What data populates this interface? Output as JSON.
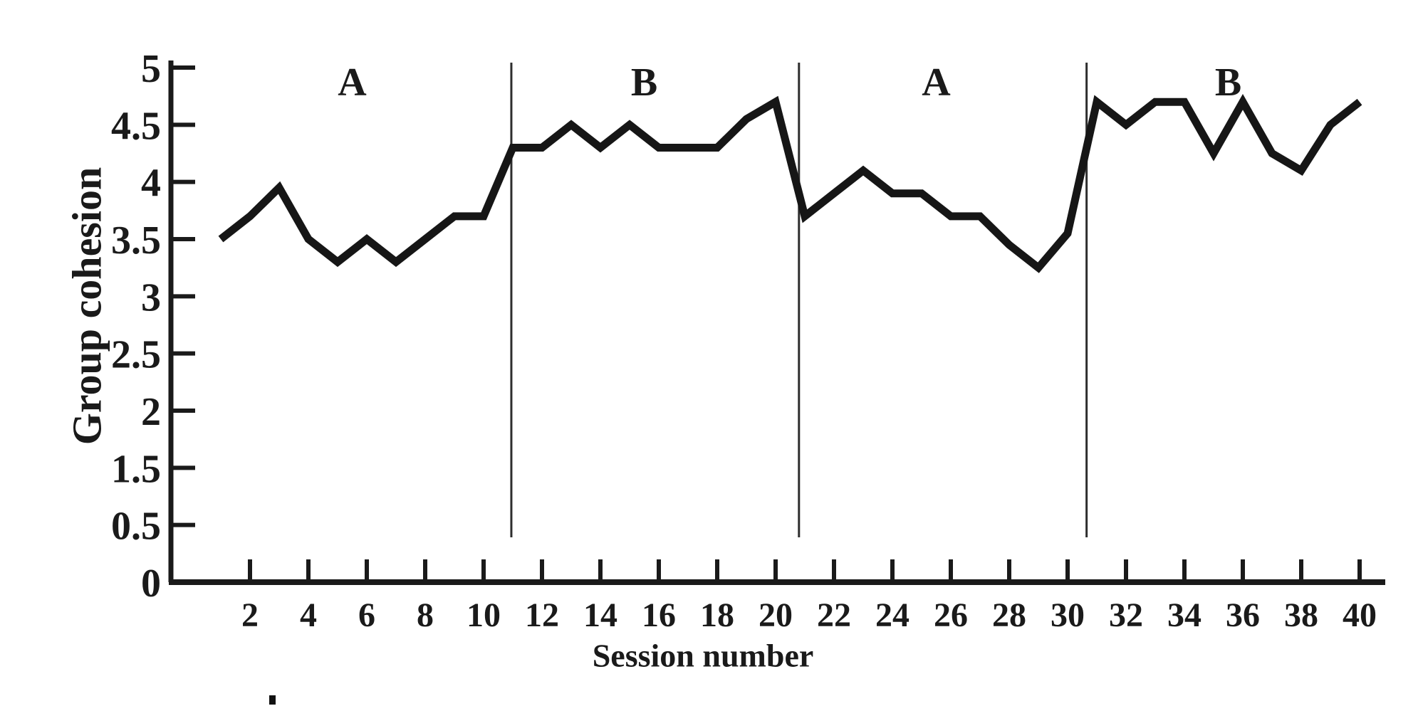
{
  "figure": {
    "background": "#ffffff",
    "ink_color": "#1a1a1a",
    "line_color": "#161616",
    "divider_color": "#2e2e2e"
  },
  "chart_data": {
    "type": "line",
    "title": "",
    "xlabel": "Session number",
    "ylabel": "Group cohesion",
    "xlim": [
      1,
      40
    ],
    "ylim": [
      0,
      5
    ],
    "grid": false,
    "legend": "none",
    "x": [
      1,
      2,
      3,
      4,
      5,
      6,
      7,
      8,
      9,
      10,
      11,
      12,
      13,
      14,
      15,
      16,
      17,
      18,
      19,
      20,
      21,
      22,
      23,
      24,
      25,
      26,
      27,
      28,
      29,
      30,
      31,
      32,
      33,
      34,
      35,
      36,
      37,
      38,
      39,
      40
    ],
    "values": [
      3.5,
      3.7,
      3.95,
      3.5,
      3.3,
      3.5,
      3.3,
      3.5,
      3.7,
      3.7,
      4.3,
      4.3,
      4.5,
      4.3,
      4.5,
      4.3,
      4.3,
      4.3,
      4.55,
      4.7,
      3.7,
      3.9,
      4.1,
      3.9,
      3.9,
      3.7,
      3.7,
      3.45,
      3.25,
      3.55,
      4.7,
      4.5,
      4.7,
      4.7,
      4.25,
      4.7,
      4.25,
      4.1,
      4.5,
      4.7
    ],
    "phases": [
      {
        "label": "A",
        "sessions": [
          1,
          10
        ]
      },
      {
        "label": "B",
        "sessions": [
          11,
          20
        ]
      },
      {
        "label": "A",
        "sessions": [
          21,
          30
        ]
      },
      {
        "label": "B",
        "sessions": [
          31,
          40
        ]
      }
    ],
    "phase_dividers_at_sessions": [
      10.95,
      20.8,
      30.65
    ],
    "x_ticks_shown": [
      2,
      4,
      6,
      8,
      10,
      12,
      14,
      16,
      18,
      20,
      22,
      24,
      26,
      28,
      30,
      32,
      34,
      36,
      38,
      40
    ],
    "y_ticks_shown": [
      "5",
      "4.5",
      "4",
      "3.5",
      "3",
      "2.5",
      "2",
      "1.5",
      "0.5",
      "0"
    ],
    "y_tick_note": "evenly spaced ticks; the label 1 is absent in the source figure"
  }
}
